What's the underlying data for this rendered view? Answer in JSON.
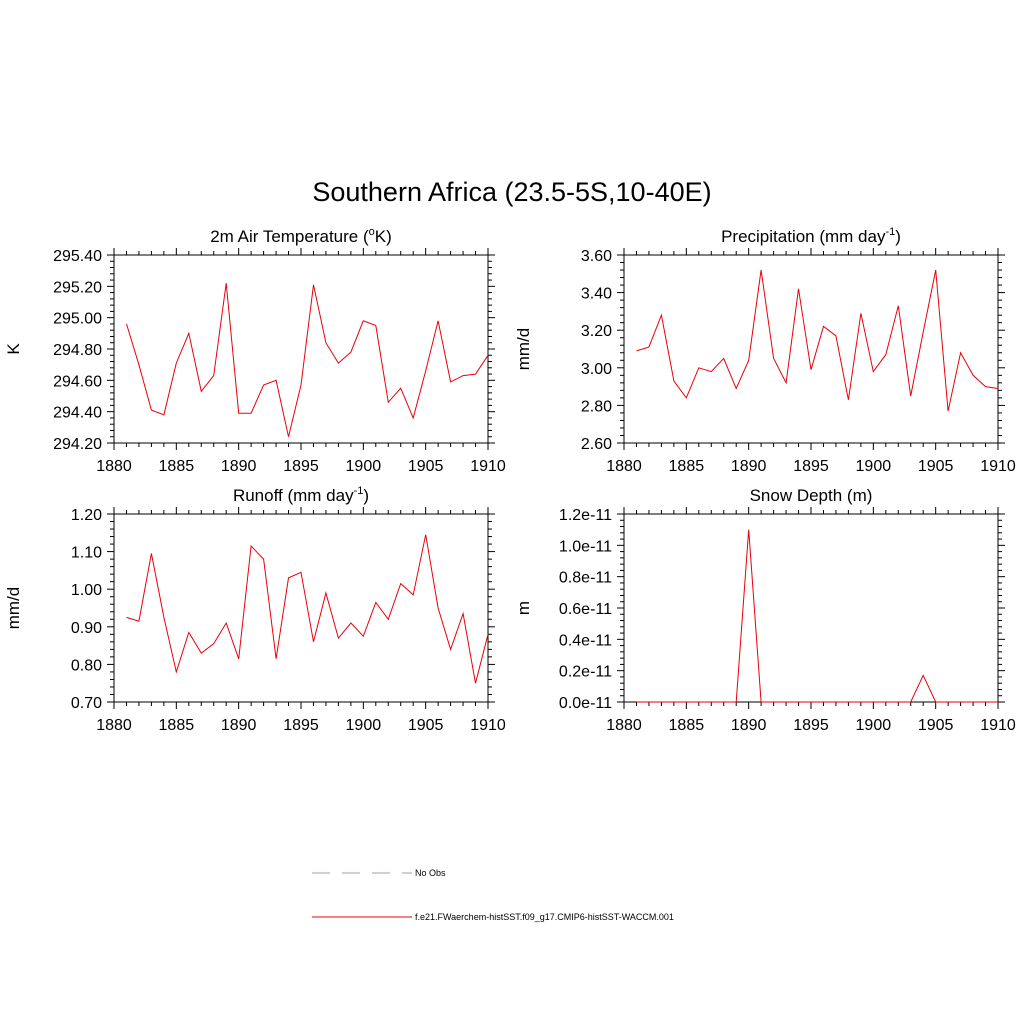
{
  "title": "Southern Africa (23.5-5S,10-40E)",
  "chart_data": [
    {
      "type": "line",
      "title": "2m Air Temperature (",
      "title_sup": "o",
      "title_tail": "K)",
      "ylabel": "K",
      "xlim": [
        1880,
        1910
      ],
      "ylim": [
        294.2,
        295.4
      ],
      "xticks": [
        1880,
        1885,
        1890,
        1895,
        1900,
        1905,
        1910
      ],
      "yticks": [
        294.2,
        294.4,
        294.6,
        294.8,
        295.0,
        295.2,
        295.4
      ],
      "ytick_labels": [
        "294.20",
        "294.40",
        "294.60",
        "294.80",
        "295.00",
        "295.20",
        "295.40"
      ],
      "series": [
        {
          "name": "f.e21.FWaerchem-histSST.f09_g17.CMIP6-histSST-WACCM.001",
          "x": [
            1881,
            1882,
            1883,
            1884,
            1885,
            1886,
            1887,
            1888,
            1889,
            1890,
            1891,
            1892,
            1893,
            1894,
            1895,
            1896,
            1897,
            1898,
            1899,
            1900,
            1901,
            1902,
            1903,
            1904,
            1905,
            1906,
            1907,
            1908,
            1909,
            1910
          ],
          "y": [
            294.96,
            294.7,
            294.41,
            294.38,
            294.71,
            294.9,
            294.53,
            294.63,
            295.22,
            294.39,
            294.39,
            294.57,
            294.6,
            294.24,
            294.57,
            295.21,
            294.84,
            294.71,
            294.78,
            294.98,
            294.95,
            294.46,
            294.55,
            294.36,
            294.66,
            294.98,
            294.59,
            294.63,
            294.64,
            294.76
          ]
        }
      ]
    },
    {
      "type": "line",
      "title": "Precipitation (mm day",
      "title_sup": "-1",
      "title_tail": ")",
      "ylabel": "mm/d",
      "xlim": [
        1880,
        1910
      ],
      "ylim": [
        2.6,
        3.6
      ],
      "xticks": [
        1880,
        1885,
        1890,
        1895,
        1900,
        1905,
        1910
      ],
      "yticks": [
        2.6,
        2.8,
        3.0,
        3.2,
        3.4,
        3.6
      ],
      "ytick_labels": [
        "2.60",
        "2.80",
        "3.00",
        "3.20",
        "3.40",
        "3.60"
      ],
      "series": [
        {
          "name": "f.e21.FWaerchem-histSST.f09_g17.CMIP6-histSST-WACCM.001",
          "x": [
            1881,
            1882,
            1883,
            1884,
            1885,
            1886,
            1887,
            1888,
            1889,
            1890,
            1891,
            1892,
            1893,
            1894,
            1895,
            1896,
            1897,
            1898,
            1899,
            1900,
            1901,
            1902,
            1903,
            1904,
            1905,
            1906,
            1907,
            1908,
            1909,
            1910
          ],
          "y": [
            3.09,
            3.11,
            3.28,
            2.93,
            2.84,
            3.0,
            2.98,
            3.05,
            2.89,
            3.04,
            3.52,
            3.05,
            2.92,
            3.42,
            2.99,
            3.22,
            3.17,
            2.83,
            3.29,
            2.98,
            3.07,
            3.33,
            2.85,
            3.19,
            3.52,
            2.77,
            3.08,
            2.96,
            2.9,
            2.89
          ]
        }
      ]
    },
    {
      "type": "line",
      "title": "Runoff (mm day",
      "title_sup": "-1",
      "title_tail": ")",
      "ylabel": "mm/d",
      "xlim": [
        1880,
        1910
      ],
      "ylim": [
        0.7,
        1.2
      ],
      "xticks": [
        1880,
        1885,
        1890,
        1895,
        1900,
        1905,
        1910
      ],
      "yticks": [
        0.7,
        0.8,
        0.9,
        1.0,
        1.1,
        1.2
      ],
      "ytick_labels": [
        "0.70",
        "0.80",
        "0.90",
        "1.00",
        "1.10",
        "1.20"
      ],
      "series": [
        {
          "name": "f.e21.FWaerchem-histSST.f09_g17.CMIP6-histSST-WACCM.001",
          "x": [
            1881,
            1882,
            1883,
            1884,
            1885,
            1886,
            1887,
            1888,
            1889,
            1890,
            1891,
            1892,
            1893,
            1894,
            1895,
            1896,
            1897,
            1898,
            1899,
            1900,
            1901,
            1902,
            1903,
            1904,
            1905,
            1906,
            1907,
            1908,
            1909,
            1910
          ],
          "y": [
            0.925,
            0.915,
            1.095,
            0.925,
            0.78,
            0.885,
            0.83,
            0.855,
            0.91,
            0.815,
            1.115,
            1.08,
            0.815,
            1.03,
            1.045,
            0.86,
            0.99,
            0.87,
            0.91,
            0.875,
            0.965,
            0.92,
            1.015,
            0.985,
            1.145,
            0.95,
            0.84,
            0.935,
            0.75,
            0.88
          ]
        }
      ]
    },
    {
      "type": "line",
      "title": "Snow Depth (m)",
      "title_sup": "",
      "title_tail": "",
      "ylabel": "m",
      "xlim": [
        1880,
        1910
      ],
      "ylim": [
        0,
        1.2
      ],
      "y_unit_note": "values in units of 1e-11 m",
      "xticks": [
        1880,
        1885,
        1890,
        1895,
        1900,
        1905,
        1910
      ],
      "yticks": [
        0,
        0.2,
        0.4,
        0.6,
        0.8,
        1.0,
        1.2
      ],
      "ytick_labels": [
        "0.0e-11",
        "0.2e-11",
        "0.4e-11",
        "0.6e-11",
        "0.8e-11",
        "1.0e-11",
        "1.2e-11"
      ],
      "series": [
        {
          "name": "f.e21.FWaerchem-histSST.f09_g17.CMIP6-histSST-WACCM.001",
          "x": [
            1881,
            1882,
            1883,
            1884,
            1885,
            1886,
            1887,
            1888,
            1889,
            1890,
            1891,
            1892,
            1893,
            1894,
            1895,
            1896,
            1897,
            1898,
            1899,
            1900,
            1901,
            1902,
            1903,
            1904,
            1905,
            1906,
            1907,
            1908,
            1909,
            1910
          ],
          "y": [
            0,
            0,
            0,
            0,
            0,
            0,
            0,
            0,
            0,
            1.1,
            0,
            0,
            0,
            0,
            0,
            0,
            0,
            0,
            0,
            0,
            0,
            0,
            0,
            0.17,
            0,
            0,
            0,
            0,
            0,
            0
          ]
        }
      ]
    }
  ],
  "legend": [
    {
      "label": "No Obs",
      "color": "#9b9bd6",
      "style": "dashed"
    },
    {
      "label": "f.e21.FWaerchem-histSST.f09_g17.CMIP6-histSST-WACCM.001",
      "color": "#e8000b",
      "style": "solid"
    }
  ]
}
